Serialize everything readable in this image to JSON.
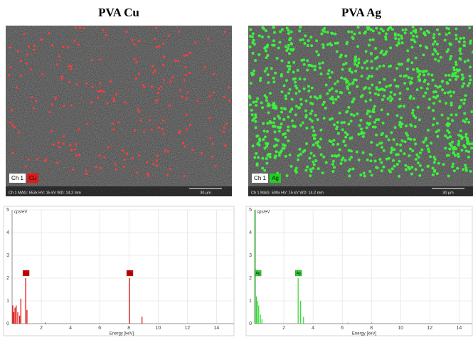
{
  "panels": [
    {
      "title": "PVA Cu",
      "channel": "Ch 1",
      "element": "Cu",
      "element_color": "#e01818",
      "dot_color": "#ff3c3c",
      "info": "Ch 1   MAG: 653x   HV: 15 kV   WD: 14.2 mm",
      "scale": "30 µm"
    },
    {
      "title": "PVA Ag",
      "channel": "Ch 1",
      "element": "Ag",
      "element_color": "#22d022",
      "dot_color": "#3cf03c",
      "info": "Ch 1   MAG: 500x   HV: 15 kV   WD: 14.2 mm",
      "scale": "30 µm"
    }
  ],
  "chart_data": [
    {
      "type": "spectrum",
      "ylabel": "cps/eV",
      "xlabel": "Energy [keV]",
      "color": "#e00000",
      "x": [
        0.05,
        0.12,
        0.2,
        0.28,
        0.39,
        0.52,
        0.6,
        0.93,
        1.02,
        2.3,
        8.04,
        8.9
      ],
      "values": [
        0.8,
        0.5,
        0.7,
        0.8,
        0.5,
        0.35,
        1.1,
        2.0,
        0.6,
        0.05,
        2.0,
        0.3
      ],
      "annotations": [
        {
          "text": "Cu",
          "x": 0.93,
          "y": 2.0
        },
        {
          "text": "Cu",
          "x": 8.04,
          "y": 2.0
        }
      ],
      "xlim": [
        0,
        15.2
      ],
      "ylim": [
        0,
        5
      ],
      "xticks": [
        2,
        4,
        6,
        8,
        10,
        12,
        14
      ],
      "yticks": [
        0,
        1,
        2,
        3,
        4,
        5
      ],
      "grid": true
    },
    {
      "type": "spectrum",
      "ylabel": "cps/eV",
      "xlabel": "Energy [keV]",
      "color": "#33d633",
      "x": [
        0.05,
        0.12,
        0.2,
        0.28,
        0.4,
        0.5,
        2.98,
        3.15,
        3.35,
        6.4,
        8.0
      ],
      "values": [
        5,
        1.2,
        1.0,
        0.8,
        0.4,
        0.2,
        2.0,
        1.0,
        0.3,
        0.05,
        0.05
      ],
      "annotations": [
        {
          "text": "Ag",
          "x": 0.2,
          "y": 2.0
        },
        {
          "text": "Ag",
          "x": 2.98,
          "y": 2.0
        }
      ],
      "xlim": [
        0,
        15.2
      ],
      "ylim": [
        0,
        5
      ],
      "xticks": [
        2,
        4,
        6,
        8,
        10,
        12,
        14
      ],
      "yticks": [
        0,
        1,
        2,
        3,
        4,
        5
      ],
      "grid": true
    }
  ]
}
